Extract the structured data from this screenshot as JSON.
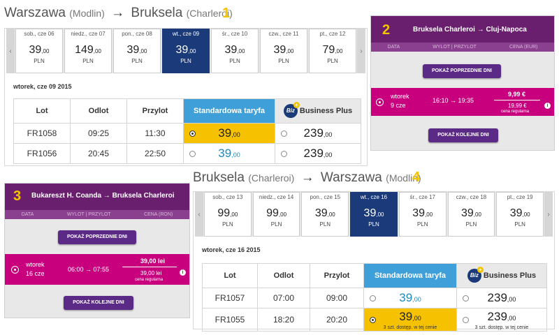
{
  "panel1": {
    "route": {
      "from": "Warszawa",
      "from_sub": "(Modlin)",
      "arrow": "→",
      "to": "Bruksela",
      "to_sub": "(Charleroi)"
    },
    "step": "1",
    "nav_prev": "‹",
    "nav_next": "›",
    "days": [
      {
        "label": "sob., cze 06",
        "price": "39",
        "cents": ",00",
        "cur": "PLN"
      },
      {
        "label": "niedz., cze 07",
        "price": "149",
        "cents": ",00",
        "cur": "PLN"
      },
      {
        "label": "pon., cze 08",
        "price": "39",
        "cents": ",00",
        "cur": "PLN"
      },
      {
        "label": "wt., cze 09",
        "price": "39",
        "cents": ",00",
        "cur": "PLN"
      },
      {
        "label": "śr., cze 10",
        "price": "39",
        "cents": ",00",
        "cur": "PLN"
      },
      {
        "label": "czw., cze 11",
        "price": "39",
        "cents": ",00",
        "cur": "PLN"
      },
      {
        "label": "pt., cze 12",
        "price": "79",
        "cents": ",00",
        "cur": "PLN"
      }
    ],
    "date_title": "wtorek, cze 09 2015",
    "headers": {
      "lot": "Lot",
      "odlot": "Odlot",
      "przylot": "Przylot",
      "std": "Standardowa taryfa",
      "biz": "Biz",
      "bp": "Business Plus"
    },
    "rows": [
      {
        "lot": "FR1058",
        "odlot": "09:25",
        "przylot": "11:30",
        "std": "39",
        "std_c": ",00",
        "bp": "239",
        "bp_c": ",00"
      },
      {
        "lot": "FR1056",
        "odlot": "20:45",
        "przylot": "22:50",
        "std": "39",
        "std_c": ",00",
        "bp": "239",
        "bp_c": ",00"
      }
    ]
  },
  "panel2": {
    "step": "2",
    "title": "Bruksela Charleroi → Cluj-Napoca",
    "cols": [
      "DATA",
      "WYLOT | PRZYLOT",
      "CENA (EUR)"
    ],
    "prev_btn": "POKAŻ POPRZEDNIE DNI",
    "next_btn": "POKAŻ KOLEJNE DNI",
    "day": "wtorek",
    "date": "9 cze",
    "times": "16:10 → 19:35",
    "price": "9,99 €",
    "reg_price": "19,99 €",
    "reg_label": "cena regularna",
    "info": "i"
  },
  "panel3": {
    "step": "3",
    "title": "Bukareszt H. Coanda → Bruksela Charleroi",
    "cols": [
      "DATA",
      "WYLOT | PRZYLOT",
      "CENA (RON)"
    ],
    "prev_btn": "POKAŻ POPRZEDNIE DNI",
    "next_btn": "POKAŻ KOLEJNE DNI",
    "day": "wtorek",
    "date": "16 cze",
    "times": "06:00 → 07:55",
    "price": "39,00 lei",
    "reg_price": "39,00 lei",
    "reg_label": "cena regularna",
    "info": "i"
  },
  "panel4": {
    "route": {
      "from": "Bruksela",
      "from_sub": "(Charleroi)",
      "arrow": "→",
      "to": "Warszawa",
      "to_sub": "(Modlin)"
    },
    "step": "4",
    "nav_prev": "‹",
    "nav_next": "›",
    "days": [
      {
        "label": "sob., cze 13",
        "price": "99",
        "cents": ",00",
        "cur": "PLN"
      },
      {
        "label": "niedz., cze 14",
        "price": "99",
        "cents": ",00",
        "cur": "PLN"
      },
      {
        "label": "pon., cze 15",
        "price": "39",
        "cents": ",00",
        "cur": "PLN"
      },
      {
        "label": "wt., cze 16",
        "price": "39",
        "cents": ",00",
        "cur": "PLN"
      },
      {
        "label": "śr., cze 17",
        "price": "39",
        "cents": ",00",
        "cur": "PLN"
      },
      {
        "label": "czw., cze 18",
        "price": "39",
        "cents": ",00",
        "cur": "PLN"
      },
      {
        "label": "pt., cze 19",
        "price": "39",
        "cents": ",00",
        "cur": "PLN"
      }
    ],
    "date_title": "wtorek, cze 16 2015",
    "headers": {
      "lot": "Lot",
      "odlot": "Odlot",
      "przylot": "Przylot",
      "std": "Standardowa taryfa",
      "biz": "Biz",
      "bp": "Business Plus"
    },
    "rows": [
      {
        "lot": "FR1057",
        "odlot": "07:00",
        "przylot": "09:00",
        "std": "39",
        "std_c": ",00",
        "bp": "239",
        "bp_c": ",00",
        "std_note": "",
        "bp_note": ""
      },
      {
        "lot": "FR1055",
        "odlot": "18:20",
        "przylot": "20:20",
        "std": "39",
        "std_c": ",00",
        "bp": "239",
        "bp_c": ",00",
        "std_note": "3 szt. dostęp. w tej cenie",
        "bp_note": "3 szt. dostęp. w tej cenie"
      }
    ]
  }
}
